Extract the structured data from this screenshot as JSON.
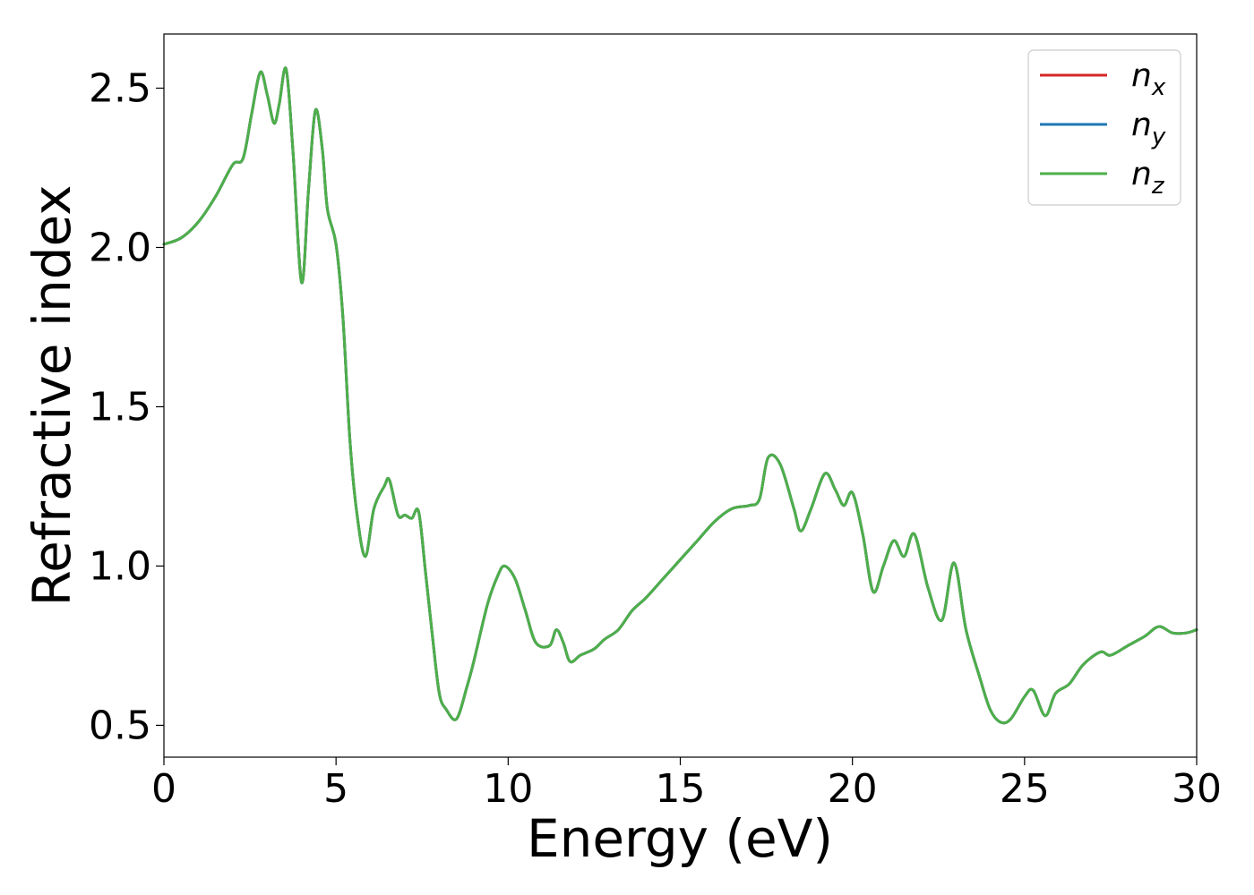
{
  "chart_data": {
    "type": "line",
    "title": "",
    "xlabel": "Energy (eV)",
    "ylabel": "Refractive index",
    "xlim": [
      0,
      30
    ],
    "ylim": [
      0.4,
      2.67
    ],
    "xticks": [
      0,
      5,
      10,
      15,
      20,
      25,
      30
    ],
    "xtick_labels": [
      "0",
      "5",
      "10",
      "15",
      "20",
      "25",
      "30"
    ],
    "yticks": [
      0.5,
      1.0,
      1.5,
      2.0,
      2.5
    ],
    "ytick_labels": [
      "0.5",
      "1.0",
      "1.5",
      "2.0",
      "2.5"
    ],
    "grid": false,
    "legend_position": "top-right",
    "legend": [
      {
        "base": "n",
        "sub": "x",
        "color": "#d62728"
      },
      {
        "base": "n",
        "sub": "y",
        "color": "#1f77b4"
      },
      {
        "base": "n",
        "sub": "z",
        "color": "#4daf4a"
      }
    ],
    "series_points": [
      [
        0,
        2.01
      ],
      [
        0.5,
        2.03
      ],
      [
        1.0,
        2.08
      ],
      [
        1.5,
        2.16
      ],
      [
        2.0,
        2.26
      ],
      [
        2.3,
        2.28
      ],
      [
        2.55,
        2.42
      ],
      [
        2.8,
        2.55
      ],
      [
        3.0,
        2.48
      ],
      [
        3.2,
        2.39
      ],
      [
        3.35,
        2.45
      ],
      [
        3.55,
        2.56
      ],
      [
        3.75,
        2.3
      ],
      [
        4.0,
        1.89
      ],
      [
        4.2,
        2.18
      ],
      [
        4.4,
        2.43
      ],
      [
        4.6,
        2.31
      ],
      [
        4.75,
        2.12
      ],
      [
        5.0,
        2.01
      ],
      [
        5.2,
        1.78
      ],
      [
        5.4,
        1.4
      ],
      [
        5.6,
        1.17
      ],
      [
        5.85,
        1.03
      ],
      [
        6.1,
        1.18
      ],
      [
        6.4,
        1.25
      ],
      [
        6.55,
        1.27
      ],
      [
        6.8,
        1.16
      ],
      [
        7.0,
        1.16
      ],
      [
        7.2,
        1.15
      ],
      [
        7.4,
        1.17
      ],
      [
        7.6,
        0.98
      ],
      [
        7.8,
        0.78
      ],
      [
        8.0,
        0.6
      ],
      [
        8.2,
        0.55
      ],
      [
        8.5,
        0.52
      ],
      [
        8.8,
        0.62
      ],
      [
        9.0,
        0.7
      ],
      [
        9.4,
        0.88
      ],
      [
        9.7,
        0.97
      ],
      [
        9.9,
        1.0
      ],
      [
        10.2,
        0.96
      ],
      [
        10.5,
        0.86
      ],
      [
        10.8,
        0.76
      ],
      [
        11.2,
        0.75
      ],
      [
        11.4,
        0.8
      ],
      [
        11.6,
        0.76
      ],
      [
        11.8,
        0.7
      ],
      [
        12.1,
        0.72
      ],
      [
        12.5,
        0.74
      ],
      [
        12.8,
        0.77
      ],
      [
        13.2,
        0.8
      ],
      [
        13.6,
        0.86
      ],
      [
        14.0,
        0.9
      ],
      [
        14.5,
        0.96
      ],
      [
        15.0,
        1.02
      ],
      [
        15.5,
        1.08
      ],
      [
        16.0,
        1.14
      ],
      [
        16.5,
        1.18
      ],
      [
        17.0,
        1.19
      ],
      [
        17.3,
        1.21
      ],
      [
        17.55,
        1.34
      ],
      [
        17.9,
        1.32
      ],
      [
        18.3,
        1.18
      ],
      [
        18.5,
        1.11
      ],
      [
        18.8,
        1.18
      ],
      [
        19.2,
        1.29
      ],
      [
        19.5,
        1.24
      ],
      [
        19.75,
        1.19
      ],
      [
        20.0,
        1.23
      ],
      [
        20.3,
        1.1
      ],
      [
        20.6,
        0.92
      ],
      [
        20.9,
        1.0
      ],
      [
        21.2,
        1.08
      ],
      [
        21.5,
        1.03
      ],
      [
        21.8,
        1.1
      ],
      [
        22.2,
        0.93
      ],
      [
        22.6,
        0.83
      ],
      [
        22.95,
        1.01
      ],
      [
        23.3,
        0.8
      ],
      [
        23.7,
        0.65
      ],
      [
        24.0,
        0.55
      ],
      [
        24.3,
        0.51
      ],
      [
        24.6,
        0.52
      ],
      [
        25.0,
        0.59
      ],
      [
        25.25,
        0.61
      ],
      [
        25.6,
        0.53
      ],
      [
        25.9,
        0.6
      ],
      [
        26.3,
        0.63
      ],
      [
        26.7,
        0.69
      ],
      [
        27.2,
        0.73
      ],
      [
        27.5,
        0.72
      ],
      [
        28.0,
        0.75
      ],
      [
        28.5,
        0.78
      ],
      [
        28.9,
        0.81
      ],
      [
        29.3,
        0.79
      ],
      [
        29.7,
        0.79
      ],
      [
        30.0,
        0.8
      ]
    ],
    "series": [
      {
        "name": "n_x",
        "color": "#d62728"
      },
      {
        "name": "n_y",
        "color": "#1f77b4"
      },
      {
        "name": "n_z",
        "color": "#4daf4a"
      }
    ]
  }
}
